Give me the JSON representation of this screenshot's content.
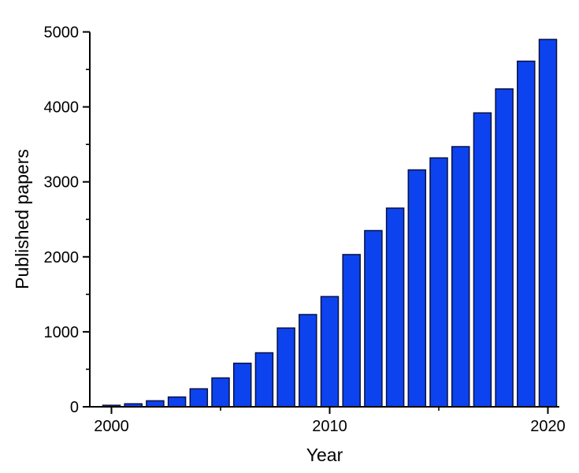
{
  "page": {
    "background_color": "#ffffff"
  },
  "chart_data": {
    "type": "bar",
    "title": "",
    "xlabel": "Year",
    "ylabel": "Published papers",
    "categories": [
      2000,
      2001,
      2002,
      2003,
      2004,
      2005,
      2006,
      2007,
      2008,
      2009,
      2010,
      2011,
      2012,
      2013,
      2014,
      2015,
      2016,
      2017,
      2018,
      2019,
      2020
    ],
    "values": [
      20,
      40,
      80,
      130,
      240,
      385,
      580,
      720,
      1050,
      1230,
      1470,
      2030,
      2350,
      2650,
      3160,
      3320,
      3470,
      3920,
      4240,
      4610,
      4900
    ],
    "ylim": [
      0,
      5000
    ],
    "y_ticks_major": [
      0,
      1000,
      2000,
      3000,
      4000,
      5000
    ],
    "y_tick_minor_step": 500,
    "x_ticks_major": [
      2000,
      2010,
      2020
    ],
    "x_ticks_minor": [
      2005,
      2015
    ],
    "grid": false,
    "legend": "none",
    "bar_fill": "#0d43ee",
    "bar_stroke": "#0a1040",
    "axis_color": "#000000",
    "tick_direction": "out"
  }
}
